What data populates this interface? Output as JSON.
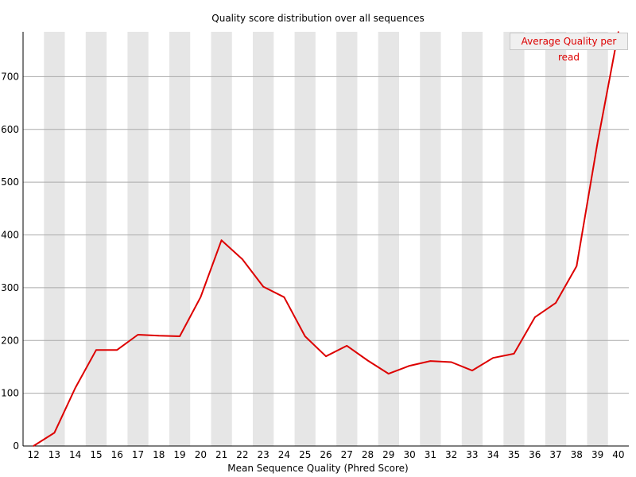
{
  "chart_data": {
    "type": "line",
    "title": "Quality score distribution over all sequences",
    "xlabel": "Mean Sequence Quality (Phred Score)",
    "ylabel": "",
    "categories": [
      "12",
      "13",
      "14",
      "15",
      "16",
      "17",
      "18",
      "19",
      "20",
      "21",
      "22",
      "23",
      "24",
      "25",
      "26",
      "27",
      "28",
      "29",
      "30",
      "31",
      "32",
      "33",
      "34",
      "35",
      "36",
      "37",
      "38",
      "39",
      "40"
    ],
    "ylim": [
      0,
      785
    ],
    "yticks": [
      "0",
      "100",
      "200",
      "300",
      "400",
      "500",
      "600",
      "700"
    ],
    "series": [
      {
        "name": "Average Quality per read",
        "color": "#dd0000",
        "values": [
          0,
          25,
          110,
          182,
          182,
          211,
          209,
          208,
          282,
          390,
          354,
          302,
          282,
          208,
          170,
          190,
          162,
          137,
          152,
          161,
          159,
          143,
          167,
          175,
          244,
          271,
          341,
          575,
          785
        ]
      }
    ],
    "legend": "top-right",
    "grid": true,
    "alternating_bands": true,
    "band_color": "#e6e6e6",
    "grid_color": "#aaaaaa"
  }
}
